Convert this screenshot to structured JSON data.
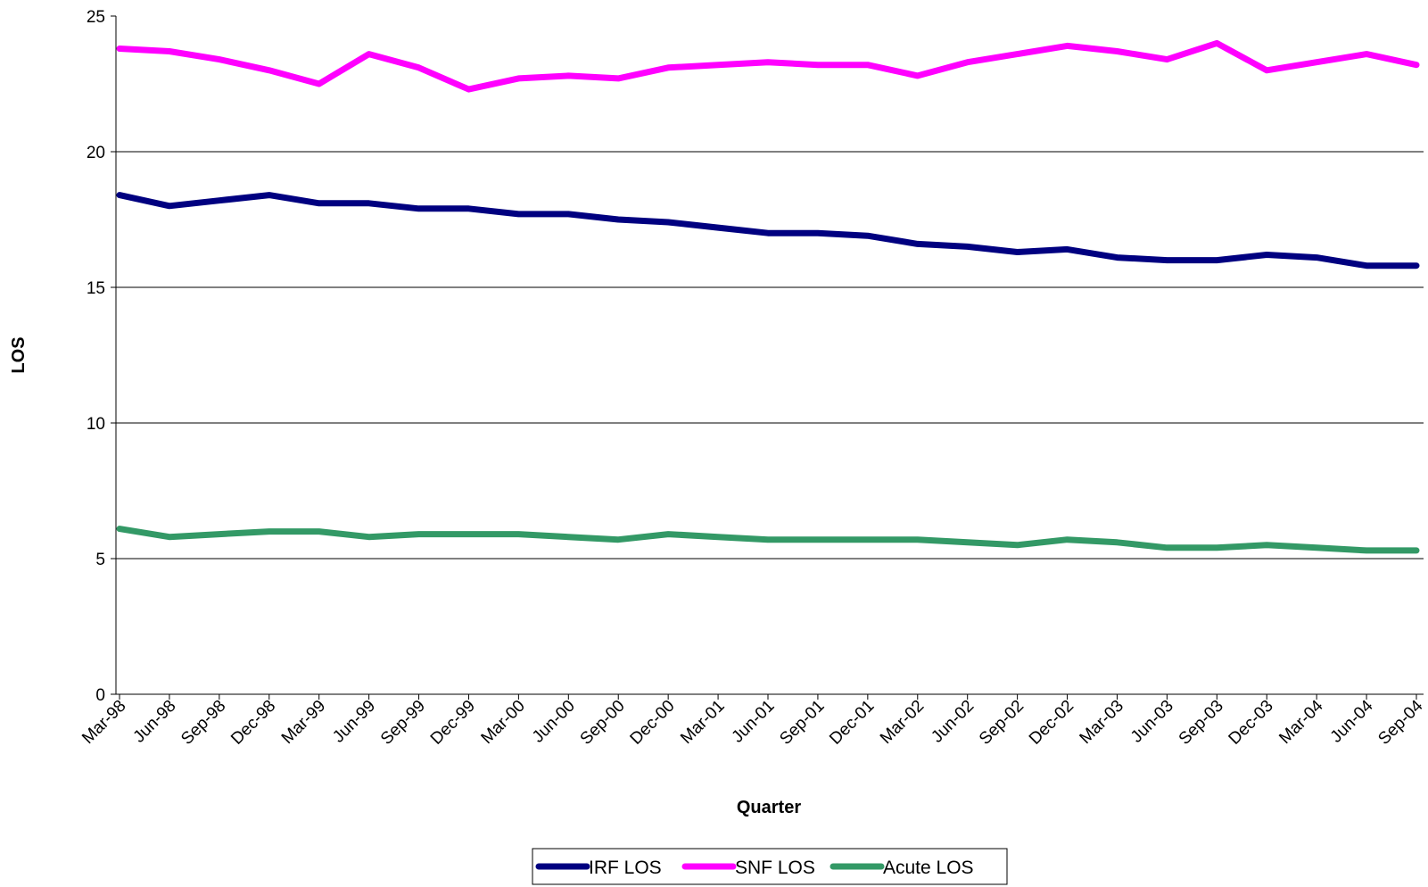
{
  "chart_data": {
    "type": "line",
    "title": "",
    "xlabel": "Quarter",
    "ylabel": "LOS",
    "ylim": [
      0,
      25
    ],
    "yticks": [
      0,
      5,
      10,
      15,
      20,
      25
    ],
    "grid": true,
    "legend_position": "bottom",
    "categories": [
      "Mar-98",
      "Jun-98",
      "Sep-98",
      "Dec-98",
      "Mar-99",
      "Jun-99",
      "Sep-99",
      "Dec-99",
      "Mar-00",
      "Jun-00",
      "Sep-00",
      "Dec-00",
      "Mar-01",
      "Jun-01",
      "Sep-01",
      "Dec-01",
      "Mar-02",
      "Jun-02",
      "Sep-02",
      "Dec-02",
      "Mar-03",
      "Jun-03",
      "Sep-03",
      "Dec-03",
      "Mar-04",
      "Jun-04",
      "Sep-04"
    ],
    "series": [
      {
        "name": "IRF LOS",
        "color": "#000080",
        "values": [
          18.4,
          18.0,
          18.2,
          18.4,
          18.1,
          18.1,
          17.9,
          17.9,
          17.7,
          17.7,
          17.5,
          17.4,
          17.2,
          17.0,
          17.0,
          16.9,
          16.6,
          16.5,
          16.3,
          16.4,
          16.1,
          16.0,
          16.0,
          16.2,
          16.1,
          15.8,
          15.8
        ]
      },
      {
        "name": "SNF LOS",
        "color": "#FF00FF",
        "values": [
          23.8,
          23.7,
          23.4,
          23.0,
          22.5,
          23.6,
          23.1,
          22.3,
          22.7,
          22.8,
          22.7,
          23.1,
          23.2,
          23.3,
          23.2,
          23.2,
          22.8,
          23.3,
          23.6,
          23.9,
          23.7,
          23.4,
          24.0,
          23.0,
          23.3,
          23.6,
          23.2
        ]
      },
      {
        "name": "Acute LOS",
        "color": "#339966",
        "values": [
          6.1,
          5.8,
          5.9,
          6.0,
          6.0,
          5.8,
          5.9,
          5.9,
          5.9,
          5.8,
          5.7,
          5.9,
          5.8,
          5.7,
          5.7,
          5.7,
          5.7,
          5.6,
          5.5,
          5.7,
          5.6,
          5.4,
          5.4,
          5.5,
          5.4,
          5.3,
          5.3
        ]
      }
    ]
  }
}
